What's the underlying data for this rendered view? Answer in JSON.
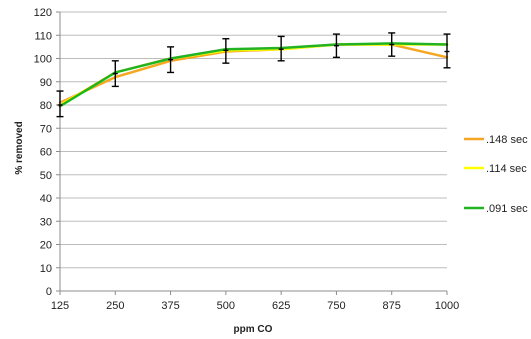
{
  "chart_data": {
    "type": "line",
    "xlabel": "ppm CO",
    "ylabel": "% removed",
    "categories": [
      "125",
      "250",
      "375",
      "500",
      "625",
      "750",
      "875",
      "1000"
    ],
    "ylim": [
      0,
      120
    ],
    "y_ticks": [
      0,
      10,
      20,
      30,
      40,
      50,
      60,
      70,
      80,
      90,
      100,
      110,
      120
    ],
    "grid": true,
    "legend_position": "right",
    "series": [
      {
        "name": ".148 sec",
        "color": "#f5a623",
        "values": [
          81,
          92,
          99,
          103,
          104,
          106,
          106,
          100.5
        ]
      },
      {
        "name": ".114 sec",
        "color": "#ffff00",
        "values": [
          80,
          94,
          100,
          103.5,
          104,
          106,
          106,
          106
        ]
      },
      {
        "name": ".091 sec",
        "color": "#22b322",
        "values": [
          79.5,
          94,
          100,
          104,
          104.5,
          106,
          106.5,
          106
        ]
      }
    ],
    "error_bars": [
      {
        "x": "125",
        "center": 80,
        "low": 75,
        "high": 86
      },
      {
        "x": "250",
        "center": 93.5,
        "low": 88,
        "high": 99
      },
      {
        "x": "375",
        "center": 99.5,
        "low": 94,
        "high": 105
      },
      {
        "x": "500",
        "center": 103.5,
        "low": 98,
        "high": 108.5
      },
      {
        "x": "625",
        "center": 104,
        "low": 99,
        "high": 109.5
      },
      {
        "x": "750",
        "center": 105.5,
        "low": 100.5,
        "high": 110.5
      },
      {
        "x": "875",
        "center": 106,
        "low": 101,
        "high": 111
      },
      {
        "x": "1000",
        "center": 103,
        "low": 96,
        "high": 110.5
      }
    ]
  }
}
